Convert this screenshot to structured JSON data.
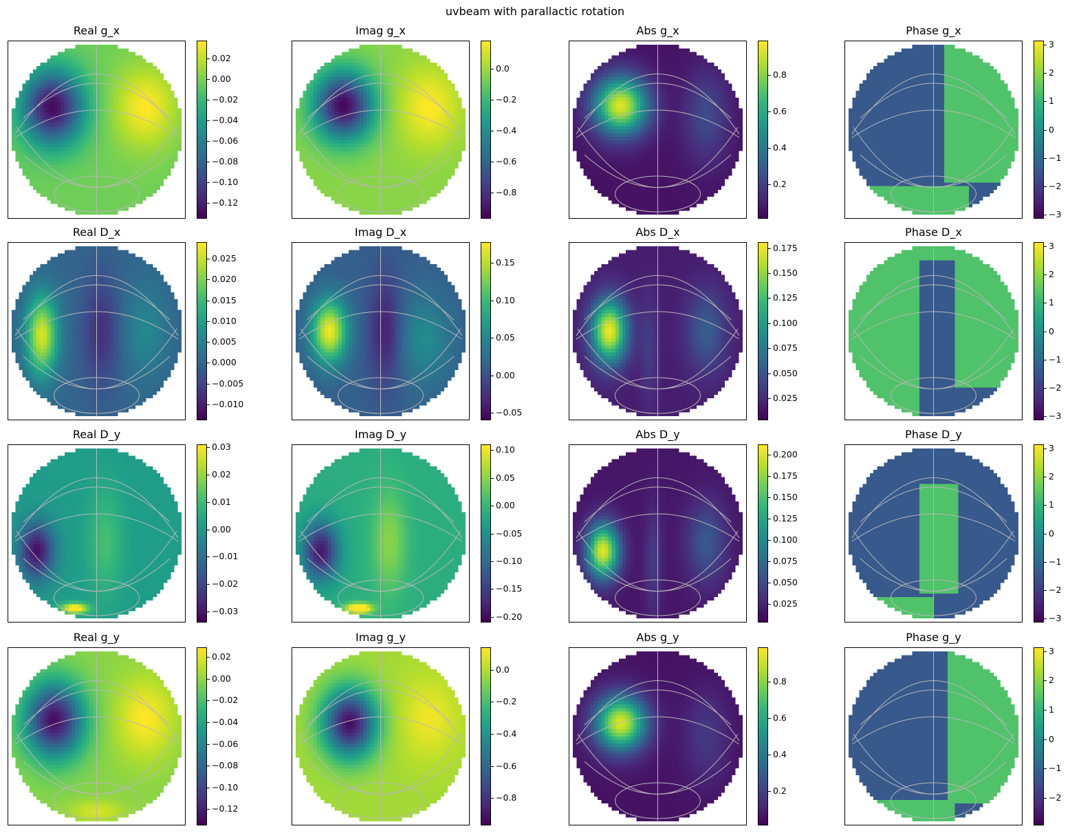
{
  "figure": {
    "title": "uvbeam with parallactic rotation",
    "colormap": "viridis",
    "colormap_stops": [
      "#440154",
      "#482878",
      "#3e4989",
      "#31688e",
      "#26828e",
      "#1f9e89",
      "#35b779",
      "#6ece58",
      "#b5de2b",
      "#fde725"
    ],
    "graticule_color": "#b8b8b8",
    "background_color": "#ffffff"
  },
  "chart_data": [
    {
      "type": "heatmap",
      "title": "Real g_x",
      "colorbar_ticks": [
        "0.02",
        "0.00",
        "−0.02",
        "−0.04",
        "−0.06",
        "−0.08",
        "−0.10",
        "−0.12"
      ],
      "colorbar_values": [
        0.02,
        0.0,
        -0.02,
        -0.04,
        -0.06,
        -0.08,
        -0.1,
        -0.12
      ],
      "colorbar_range": [
        -0.135,
        0.037
      ],
      "pattern": "gx_real"
    },
    {
      "type": "heatmap",
      "title": "Imag g_x",
      "colorbar_ticks": [
        "0.0",
        "−0.2",
        "−0.4",
        "−0.6",
        "−0.8"
      ],
      "colorbar_values": [
        0.0,
        -0.2,
        -0.4,
        -0.6,
        -0.8
      ],
      "colorbar_range": [
        -0.97,
        0.18
      ],
      "pattern": "gx_imag"
    },
    {
      "type": "heatmap",
      "title": "Abs g_x",
      "colorbar_ticks": [
        "0.8",
        "0.6",
        "0.4",
        "0.2"
      ],
      "colorbar_values": [
        0.8,
        0.6,
        0.4,
        0.2
      ],
      "colorbar_range": [
        0.01,
        0.99
      ],
      "pattern": "gx_abs"
    },
    {
      "type": "heatmap",
      "title": "Phase g_x",
      "colorbar_ticks": [
        "3",
        "2",
        "1",
        "0",
        "−1",
        "−2",
        "−3"
      ],
      "colorbar_values": [
        3,
        2,
        1,
        0,
        -1,
        -2,
        -3
      ],
      "colorbar_range": [
        -3.14,
        3.14
      ],
      "pattern": "gx_phase"
    },
    {
      "type": "heatmap",
      "title": "Real D_x",
      "colorbar_ticks": [
        "0.025",
        "0.020",
        "0.015",
        "0.010",
        "0.005",
        "0.000",
        "−0.005",
        "−0.010"
      ],
      "colorbar_values": [
        0.025,
        0.02,
        0.015,
        0.01,
        0.005,
        0.0,
        -0.005,
        -0.01
      ],
      "colorbar_range": [
        -0.0138,
        0.029
      ],
      "pattern": "dx_real"
    },
    {
      "type": "heatmap",
      "title": "Imag D_x",
      "colorbar_ticks": [
        "0.15",
        "0.10",
        "0.05",
        "0.00",
        "−0.05"
      ],
      "colorbar_values": [
        0.15,
        0.1,
        0.05,
        0.0,
        -0.05
      ],
      "colorbar_range": [
        -0.06,
        0.178
      ],
      "pattern": "dx_imag"
    },
    {
      "type": "heatmap",
      "title": "Abs D_x",
      "colorbar_ticks": [
        "0.175",
        "0.150",
        "0.125",
        "0.100",
        "0.075",
        "0.050",
        "0.025"
      ],
      "colorbar_values": [
        0.175,
        0.15,
        0.125,
        0.1,
        0.075,
        0.05,
        0.025
      ],
      "colorbar_range": [
        0.003,
        0.181
      ],
      "pattern": "dx_abs"
    },
    {
      "type": "heatmap",
      "title": "Phase D_x",
      "colorbar_ticks": [
        "3",
        "2",
        "1",
        "0",
        "−1",
        "−2",
        "−3"
      ],
      "colorbar_values": [
        3,
        2,
        1,
        0,
        -1,
        -2,
        -3
      ],
      "colorbar_range": [
        -3.14,
        3.14
      ],
      "pattern": "dx_phase"
    },
    {
      "type": "heatmap",
      "title": "Real D_y",
      "colorbar_ticks": [
        "0.03",
        "0.02",
        "0.01",
        "0.00",
        "−0.01",
        "−0.02",
        "−0.03"
      ],
      "colorbar_values": [
        0.03,
        0.02,
        0.01,
        0.0,
        -0.01,
        -0.02,
        -0.03
      ],
      "colorbar_range": [
        -0.034,
        0.031
      ],
      "pattern": "dy_real"
    },
    {
      "type": "heatmap",
      "title": "Imag D_y",
      "colorbar_ticks": [
        "0.10",
        "0.05",
        "0.00",
        "−0.05",
        "−0.10",
        "−0.15",
        "−0.20"
      ],
      "colorbar_values": [
        0.1,
        0.05,
        0.0,
        -0.05,
        -0.1,
        -0.15,
        -0.2
      ],
      "colorbar_range": [
        -0.21,
        0.11
      ],
      "pattern": "dy_imag"
    },
    {
      "type": "heatmap",
      "title": "Abs D_y",
      "colorbar_ticks": [
        "0.200",
        "0.175",
        "0.150",
        "0.125",
        "0.100",
        "0.075",
        "0.050",
        "0.025"
      ],
      "colorbar_values": [
        0.2,
        0.175,
        0.15,
        0.125,
        0.1,
        0.075,
        0.05,
        0.025
      ],
      "colorbar_range": [
        0.003,
        0.212
      ],
      "pattern": "dy_abs"
    },
    {
      "type": "heatmap",
      "title": "Phase D_y",
      "colorbar_ticks": [
        "3",
        "2",
        "1",
        "0",
        "−1",
        "−2",
        "−3"
      ],
      "colorbar_values": [
        3,
        2,
        1,
        0,
        -1,
        -2,
        -3
      ],
      "colorbar_range": [
        -3.14,
        3.14
      ],
      "pattern": "dy_phase"
    },
    {
      "type": "heatmap",
      "title": "Real g_y",
      "colorbar_ticks": [
        "0.02",
        "0.00",
        "−0.02",
        "−0.04",
        "−0.06",
        "−0.08",
        "−0.10",
        "−0.12"
      ],
      "colorbar_values": [
        0.02,
        0.0,
        -0.02,
        -0.04,
        -0.06,
        -0.08,
        -0.1,
        -0.12
      ],
      "colorbar_range": [
        -0.135,
        0.029
      ],
      "pattern": "gy_real"
    },
    {
      "type": "heatmap",
      "title": "Imag g_y",
      "colorbar_ticks": [
        "0.0",
        "−0.2",
        "−0.4",
        "−0.6",
        "−0.8"
      ],
      "colorbar_values": [
        0.0,
        -0.2,
        -0.4,
        -0.6,
        -0.8
      ],
      "colorbar_range": [
        -0.97,
        0.14
      ],
      "pattern": "gy_imag"
    },
    {
      "type": "heatmap",
      "title": "Abs g_y",
      "colorbar_ticks": [
        "0.8",
        "0.6",
        "0.4",
        "0.2"
      ],
      "colorbar_values": [
        0.8,
        0.6,
        0.4,
        0.2
      ],
      "colorbar_range": [
        0.01,
        0.99
      ],
      "pattern": "gy_abs"
    },
    {
      "type": "heatmap",
      "title": "Phase g_y",
      "colorbar_ticks": [
        "3",
        "2",
        "1",
        "0",
        "−1",
        "−2"
      ],
      "colorbar_values": [
        3,
        2,
        1,
        0,
        -1,
        -2
      ],
      "colorbar_range": [
        -2.95,
        3.14
      ],
      "pattern": "gy_phase"
    }
  ]
}
